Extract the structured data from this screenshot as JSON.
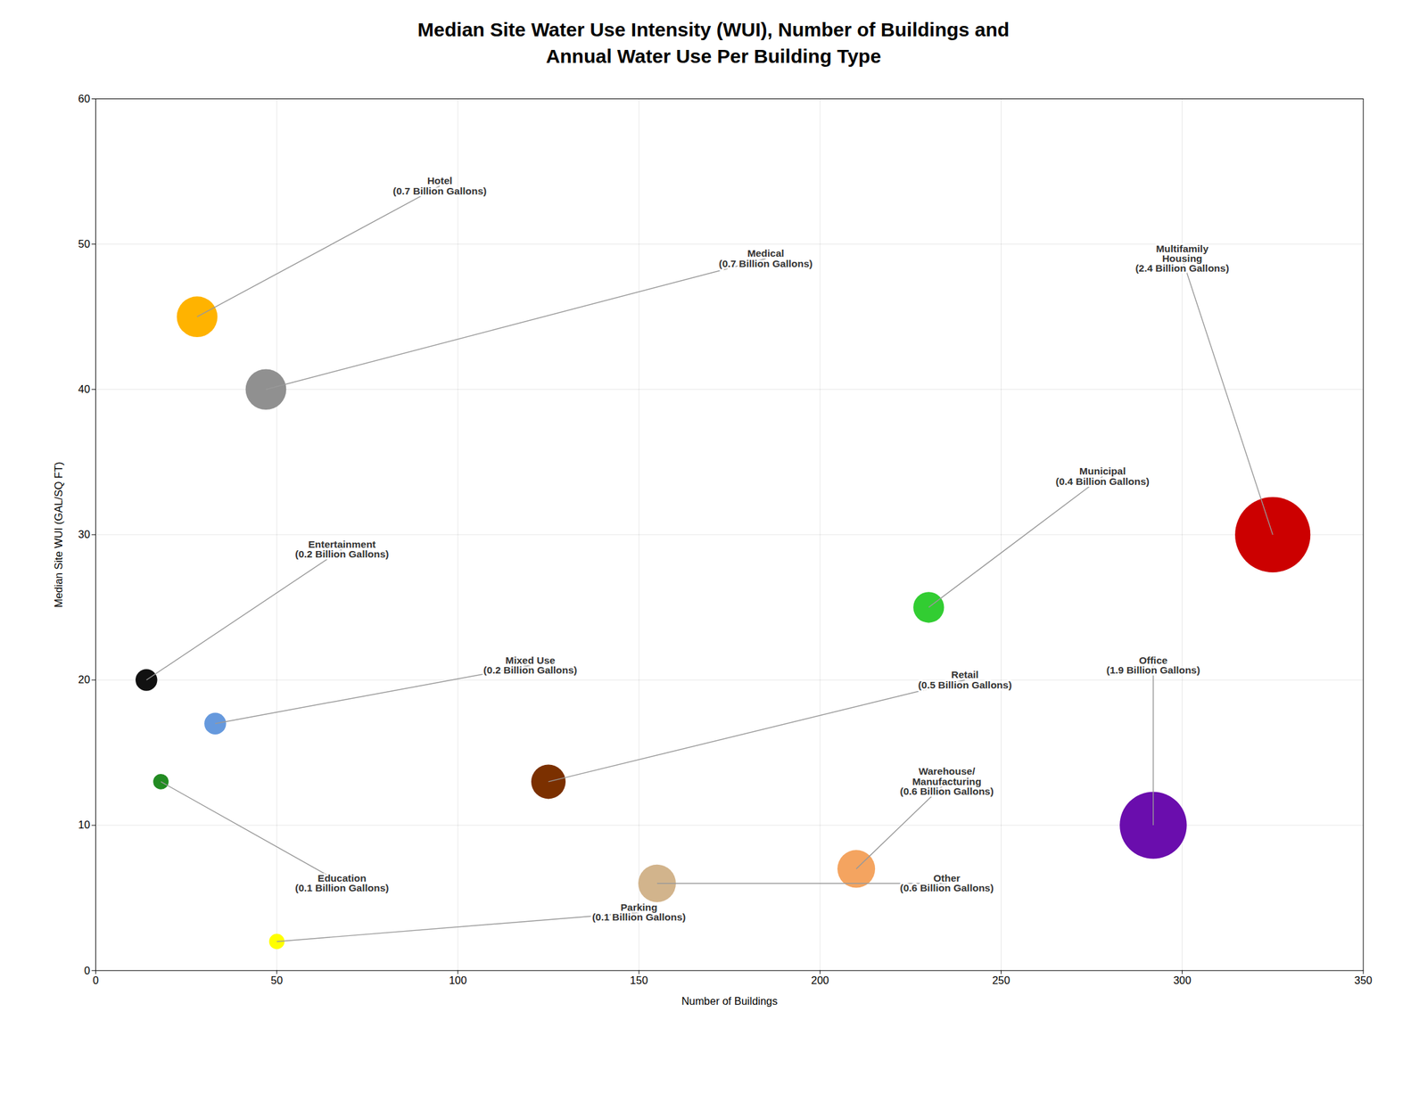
{
  "chart_data": {
    "type": "bubble",
    "title": "Median Site Water Use Intensity (WUI), Number of Buildings and\nAnnual Water Use Per Building Type",
    "xlabel": "Number of Buildings",
    "ylabel": "Median Site WUI (GAL/SQ FT)",
    "x": [
      28,
      47,
      14,
      18,
      33,
      50,
      125,
      155,
      210,
      230,
      292,
      325
    ],
    "y": [
      45,
      40,
      20,
      13,
      17,
      2,
      13,
      6,
      7,
      25,
      10,
      30
    ],
    "sizes": [
      0.7,
      0.7,
      0.2,
      0.1,
      0.2,
      0.1,
      0.5,
      0.6,
      0.6,
      0.4,
      1.9,
      2.4
    ],
    "colors": [
      "#FFB300",
      "#909090",
      "#111111",
      "#228B22",
      "#6699DD",
      "#FFFF00",
      "#7B3000",
      "#D2B48C",
      "#F4A460",
      "#32CD32",
      "#6A0DAD",
      "#CC0000"
    ],
    "annotations": [
      {
        "text": "Hotel\n(0.7 Billion Gallons)",
        "x": 95,
        "y": 54
      },
      {
        "text": "Medical\n(0.7 Billion Gallons)",
        "x": 185,
        "y": 49
      },
      {
        "text": "Entertainment\n(0.2 Billion Gallons)",
        "x": 68,
        "y": 29
      },
      {
        "text": "Education\n(0.1 Billion Gallons)",
        "x": 68,
        "y": 6
      },
      {
        "text": "Mixed Use\n(0.2 Billion Gallons)",
        "x": 120,
        "y": 21
      },
      {
        "text": "Parking\n(0.1 Billion Gallons)",
        "x": 150,
        "y": 4
      },
      {
        "text": "Retail\n(0.5 Billion Gallons)",
        "x": 240,
        "y": 20
      },
      {
        "text": "Other\n(0.6 Billion Gallons)",
        "x": 235,
        "y": 6
      },
      {
        "text": "Warehouse/\nManufacturing\n(0.6 Billion Gallons)",
        "x": 235,
        "y": 13
      },
      {
        "text": "Municipal\n(0.4 Billion Gallons)",
        "x": 278,
        "y": 34
      },
      {
        "text": "Office\n(1.9 Billion Gallons)",
        "x": 292,
        "y": 21
      },
      {
        "text": "Multifamily\nHousing\n(2.4 Billion Gallons)",
        "x": 300,
        "y": 49
      }
    ],
    "xlim": [
      0,
      350
    ],
    "ylim": [
      0,
      60
    ],
    "xticks": [
      0,
      50,
      100,
      150,
      200,
      250,
      300,
      350
    ],
    "yticks": [
      0,
      10,
      20,
      30,
      40,
      50,
      60
    ],
    "grid": true
  }
}
